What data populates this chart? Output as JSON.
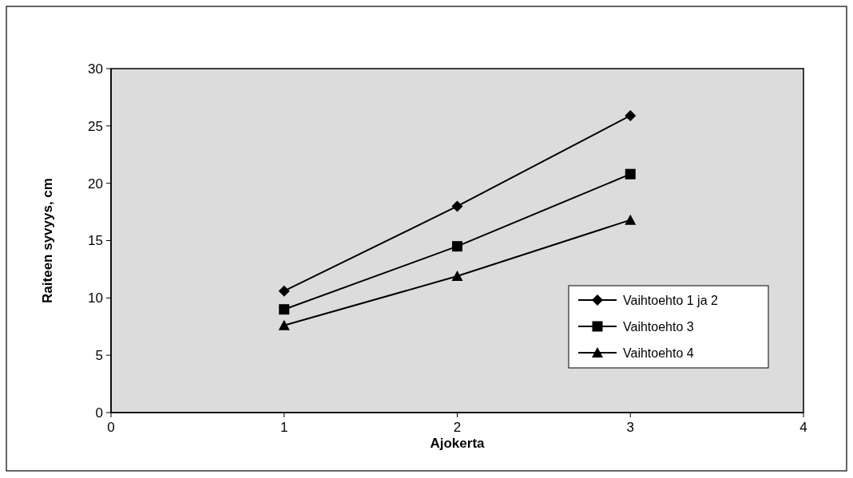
{
  "chart_data": {
    "type": "line",
    "xlabel": "Ajokerta",
    "ylabel": "Raiteen syvyys, cm",
    "x": [
      1,
      2,
      3
    ],
    "xlim": [
      0,
      4
    ],
    "xticks": [
      0,
      1,
      2,
      3,
      4
    ],
    "ylim": [
      0,
      30
    ],
    "yticks": [
      0,
      5,
      10,
      15,
      20,
      25,
      30
    ],
    "grid": false,
    "legend": "right",
    "line_style": "solid",
    "series": [
      {
        "name": "Vaihtoehto 1 ja 2",
        "color": "#000000",
        "marker": "diamond",
        "values": [
          10.6,
          18,
          25.9
        ]
      },
      {
        "name": "Vaihtoehto 3",
        "color": "#000000",
        "marker": "square",
        "values": [
          9,
          14.5,
          20.8
        ]
      },
      {
        "name": "Vaihtoehto 4",
        "color": "#000000",
        "marker": "triangle",
        "values": [
          7.6,
          11.9,
          16.8
        ]
      }
    ]
  }
}
